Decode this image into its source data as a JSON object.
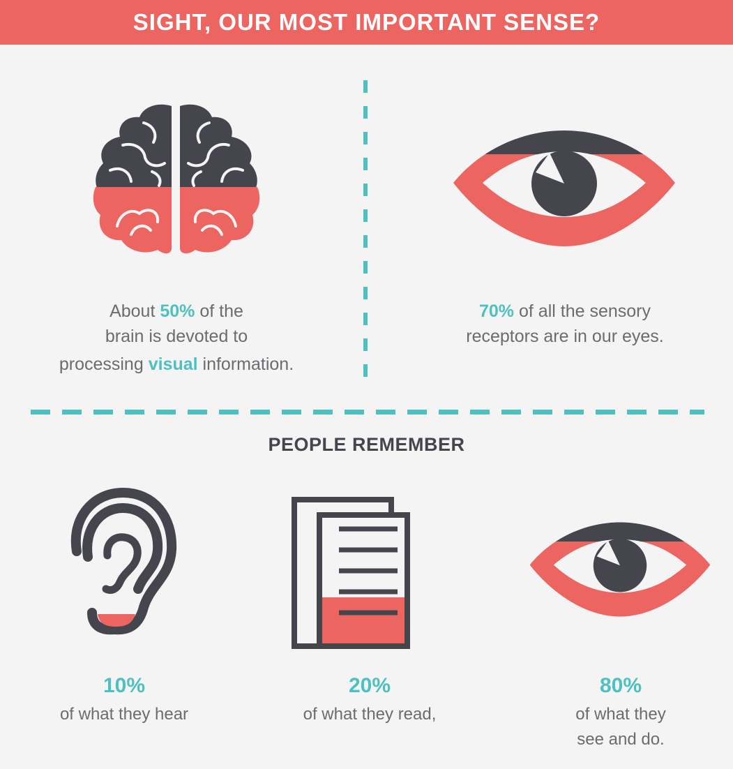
{
  "header": {
    "title": "SIGHT, OUR MOST IMPORTANT SENSE?"
  },
  "brain": {
    "line1_pre": "About ",
    "line1_hl": "50%",
    "line1_post": " of the",
    "line2": "brain is devoted to",
    "line3_pre": "processing ",
    "line3_hl": "visual",
    "line3_post": " information."
  },
  "eye_fact": {
    "line1_hl": "70%",
    "line1_post": " of all the sensory",
    "line2": "receptors are in our eyes."
  },
  "remember": {
    "title": "PEOPLE REMEMBER",
    "items": [
      {
        "pct": "10%",
        "lines": [
          "of what they hear"
        ]
      },
      {
        "pct": "20%",
        "lines": [
          "of what they read,"
        ]
      },
      {
        "pct": "80%",
        "lines": [
          "of what they",
          "see and do."
        ]
      }
    ]
  },
  "colors": {
    "coral": "#ec6561",
    "teal": "#4fc0c0",
    "dark": "#45464d",
    "background": "#f4f4f5"
  }
}
